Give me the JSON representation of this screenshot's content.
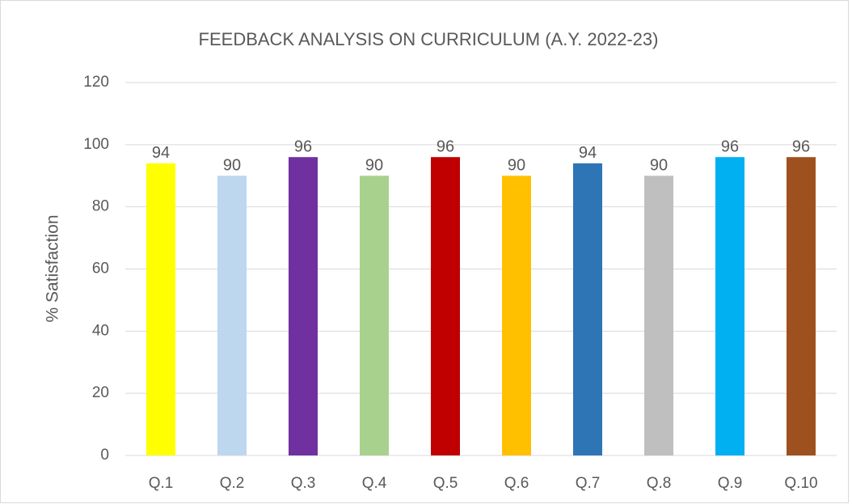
{
  "chart_data": {
    "type": "bar",
    "title": "FEEDBACK ANALYSIS ON CURRICULUM (A.Y. 2022-23)",
    "ylabel": "% Satisfaction",
    "categories": [
      "Q.1",
      "Q.2",
      "Q.3",
      "Q.4",
      "Q.5",
      "Q.6",
      "Q.7",
      "Q.8",
      "Q.9",
      "Q.10"
    ],
    "values": [
      94,
      90,
      96,
      90,
      96,
      90,
      94,
      90,
      96,
      96
    ],
    "colors": [
      "#ffff00",
      "#bdd7ee",
      "#7030a0",
      "#a9d18e",
      "#c00000",
      "#ffc000",
      "#2e75b6",
      "#bfbfbf",
      "#00b0f0",
      "#9e511f"
    ],
    "ylim": [
      0,
      120
    ],
    "yticks": [
      0,
      20,
      40,
      60,
      80,
      100,
      120
    ],
    "grid": true
  }
}
